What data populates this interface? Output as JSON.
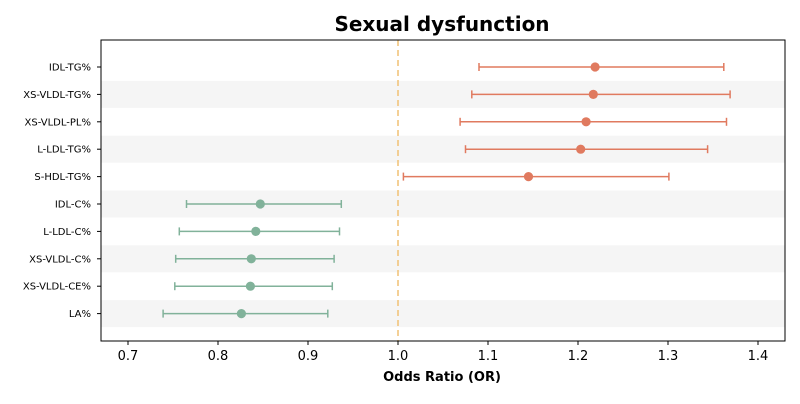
{
  "chart_data": {
    "type": "forest",
    "title": "Sexual dysfunction",
    "xlabel": "Odds Ratio (OR)",
    "xlim": [
      0.67,
      1.43
    ],
    "xticks": [
      0.7,
      0.8,
      0.9,
      1.0,
      1.1,
      1.2,
      1.3,
      1.4
    ],
    "xtick_labels": [
      "0.7",
      "0.8",
      "0.9",
      "1.0",
      "1.1",
      "1.2",
      "1.3",
      "1.4"
    ],
    "reference_line": 1.0,
    "colors": {
      "positive": "#e07a5f",
      "negative": "#81b29a",
      "reference": "#f2c57c",
      "band": "#f5f5f5"
    },
    "rows": [
      {
        "label": "IDL-TG%",
        "or": 1.219,
        "lower": 1.09,
        "upper": 1.362,
        "direction": "positive"
      },
      {
        "label": "XS-VLDL-TG%",
        "or": 1.217,
        "lower": 1.082,
        "upper": 1.369,
        "direction": "positive"
      },
      {
        "label": "XS-VLDL-PL%",
        "or": 1.209,
        "lower": 1.069,
        "upper": 1.365,
        "direction": "positive"
      },
      {
        "label": "L-LDL-TG%",
        "or": 1.203,
        "lower": 1.075,
        "upper": 1.344,
        "direction": "positive"
      },
      {
        "label": "S-HDL-TG%",
        "or": 1.145,
        "lower": 1.006,
        "upper": 1.301,
        "direction": "positive"
      },
      {
        "label": "IDL-C%",
        "or": 0.847,
        "lower": 0.765,
        "upper": 0.937,
        "direction": "negative"
      },
      {
        "label": "L-LDL-C%",
        "or": 0.842,
        "lower": 0.757,
        "upper": 0.935,
        "direction": "negative"
      },
      {
        "label": "XS-VLDL-C%",
        "or": 0.837,
        "lower": 0.753,
        "upper": 0.929,
        "direction": "negative"
      },
      {
        "label": "XS-VLDL-CE%",
        "or": 0.836,
        "lower": 0.752,
        "upper": 0.927,
        "direction": "negative"
      },
      {
        "label": "LA%",
        "or": 0.826,
        "lower": 0.739,
        "upper": 0.922,
        "direction": "negative"
      }
    ]
  }
}
